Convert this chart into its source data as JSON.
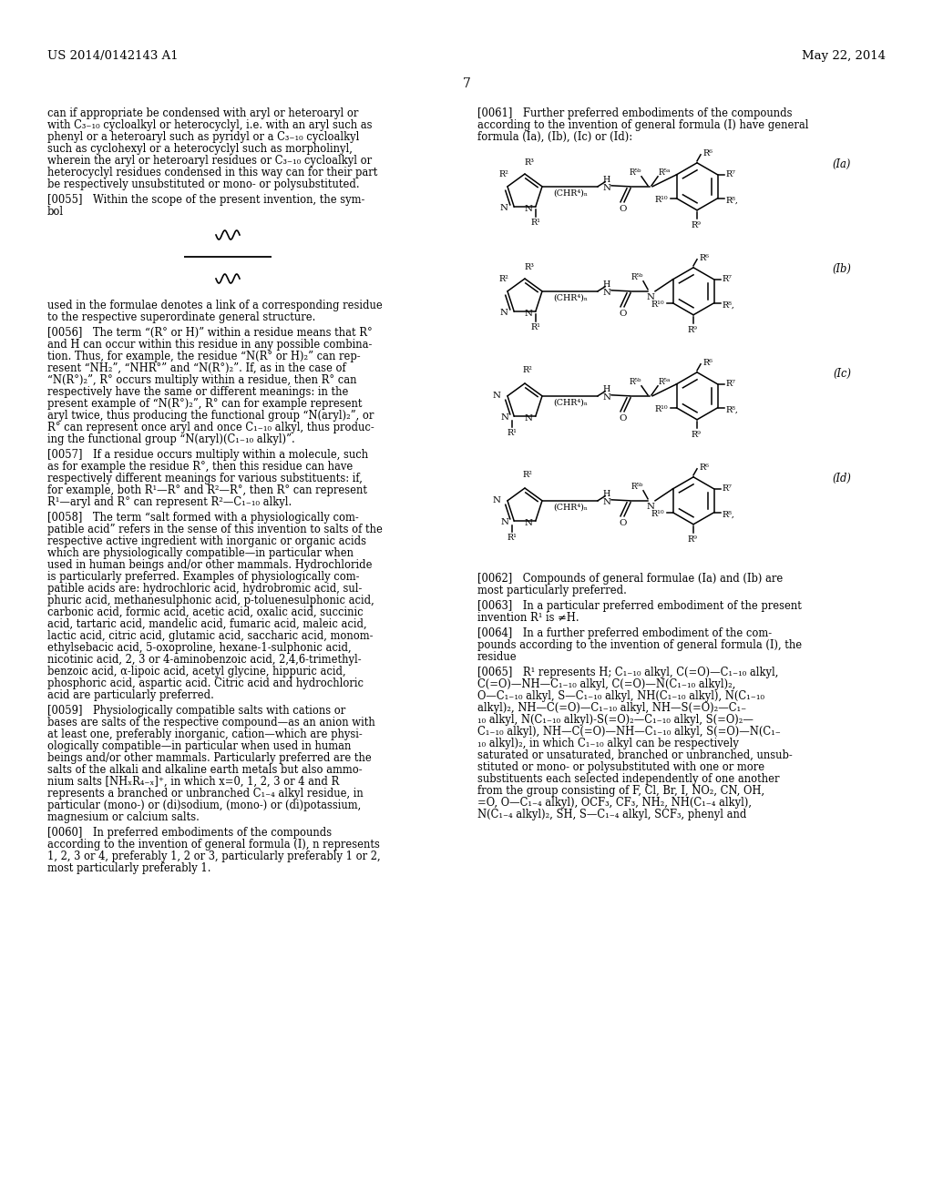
{
  "background_color": "#ffffff",
  "header_left": "US 2014/0142143 A1",
  "header_right": "May 22, 2014",
  "page_number": "7"
}
